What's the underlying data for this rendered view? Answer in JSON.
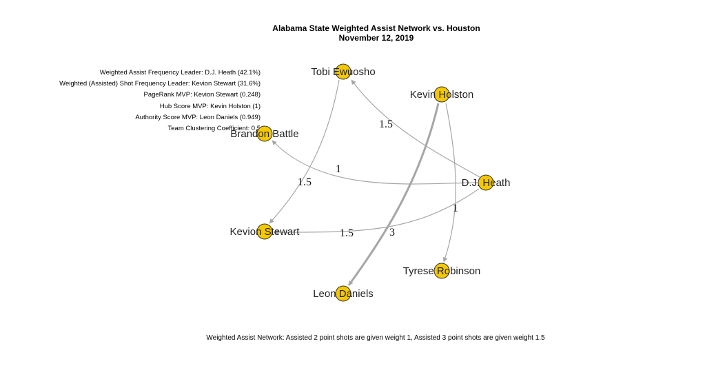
{
  "title": {
    "line1": "Alabama State Weighted Assist Network vs. Houston",
    "line2": "November 12, 2019"
  },
  "stats": [
    "Weighted Assist Frequency Leader: D.J. Heath (42.1%)",
    "Weighted (Assisted) Shot Frequency Leader: Kevion Stewart (31.6%)",
    "PageRank MVP: Kevion Stewart (0.248)",
    "Hub Score MVP: Kevin Holston (1)",
    "Authority Score MVP: Leon Daniels (0.949)",
    "Team Clustering Coefficient: 0.5"
  ],
  "caption": "Weighted Assist Network: Assisted 2 point shots are given weight 1, Assisted 3 point shots are given weight 1.5",
  "colors": {
    "node_fill": "#F5C800",
    "node_stroke": "#333333",
    "edge": "#A6A6A6"
  },
  "nodes": [
    {
      "id": "tobi",
      "label": "Tobi Ewuosho"
    },
    {
      "id": "holston",
      "label": "Kevin Holston"
    },
    {
      "id": "battle",
      "label": "Brandon Battle"
    },
    {
      "id": "heath",
      "label": "D.J. Heath"
    },
    {
      "id": "stewart",
      "label": "Kevion Stewart"
    },
    {
      "id": "robinson",
      "label": "Tyrese Robinson"
    },
    {
      "id": "daniels",
      "label": "Leon Daniels"
    }
  ],
  "edges": [
    {
      "from": "heath",
      "to": "tobi",
      "weight": "1.5"
    },
    {
      "from": "heath",
      "to": "battle",
      "weight": "1"
    },
    {
      "from": "heath",
      "to": "stewart",
      "weight": "1.5"
    },
    {
      "from": "tobi",
      "to": "stewart",
      "weight": "1.5"
    },
    {
      "from": "holston",
      "to": "daniels",
      "weight": "3"
    },
    {
      "from": "holston",
      "to": "robinson",
      "weight": "1"
    }
  ]
}
